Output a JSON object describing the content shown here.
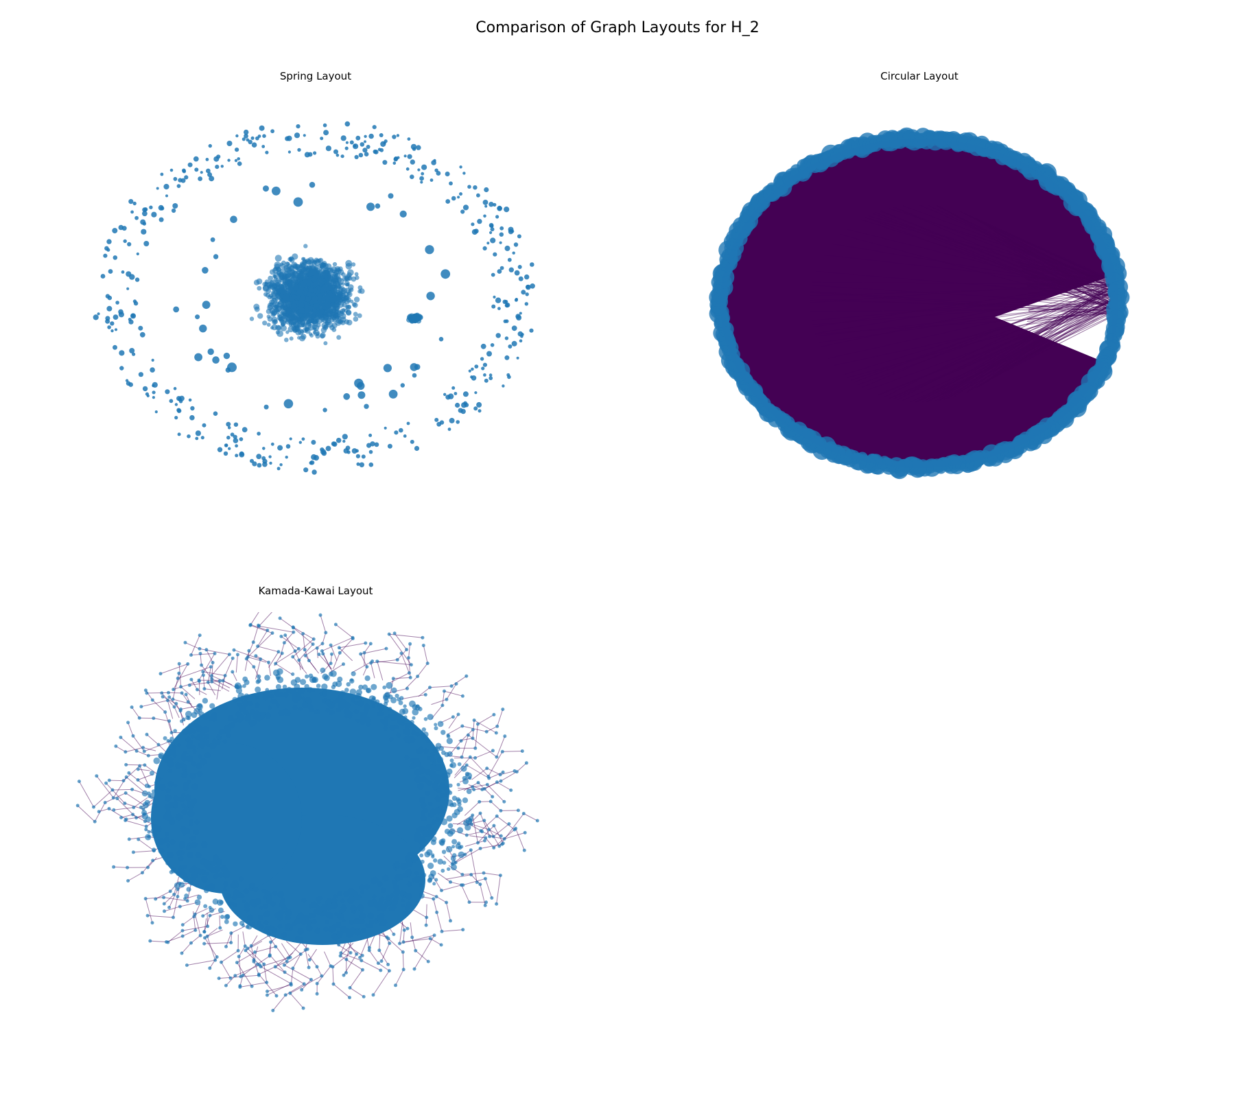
{
  "figure": {
    "title": "Comparison of Graph Layouts for H_2"
  },
  "panels": [
    {
      "id": "spring",
      "title": "Spring Layout"
    },
    {
      "id": "circular",
      "title": "Circular Layout"
    },
    {
      "id": "kamada_kawai",
      "title": "Kamada-Kawai Layout"
    }
  ],
  "colors": {
    "node": "#1f77b4",
    "edge": "#440154",
    "background": "#ffffff"
  }
}
